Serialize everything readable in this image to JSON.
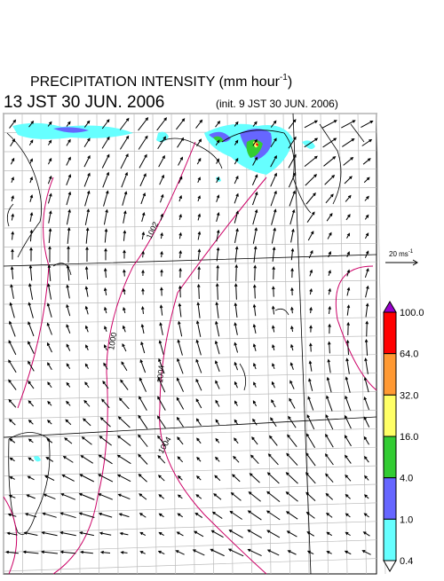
{
  "header": {
    "title": "PRECIPITATION INTENSITY (mm hour",
    "title_sup": "-1",
    "title_end": ")",
    "valid_time": "13 JST 30 JUN. 2006",
    "init_time": "(init. 9 JST 30 JUN. 2006)"
  },
  "wind_scale": {
    "label": "20 ms",
    "label_sup": "-1"
  },
  "contour_labels": [
    "1002",
    "1000",
    "1004",
    "1004"
  ],
  "colorbar": {
    "labels": [
      "100.0",
      "64.0",
      "32.0",
      "16.0",
      "4.0",
      "1.0",
      "0.4"
    ],
    "colors": [
      "#9900cc",
      "#ff0000",
      "#ff9933",
      "#ffff66",
      "#33cc33",
      "#6666ff",
      "#66ffff",
      "#ffffff"
    ]
  }
}
